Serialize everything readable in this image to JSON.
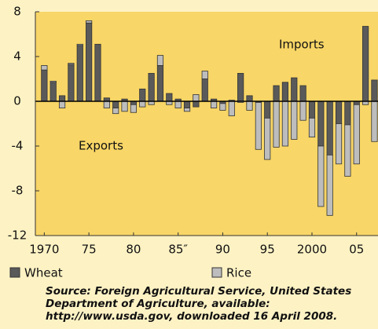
{
  "chart_data": {
    "type": "bar",
    "stacked": true,
    "x": [
      1970,
      1971,
      1972,
      1973,
      1974,
      1975,
      1976,
      1977,
      1978,
      1979,
      1980,
      1981,
      1982,
      1983,
      1984,
      1985,
      1986,
      1987,
      1988,
      1989,
      1990,
      1991,
      1992,
      1993,
      1994,
      1995,
      1996,
      1997,
      1998,
      1999,
      2000,
      2001,
      2002,
      2003,
      2004,
      2005,
      2006,
      2007
    ],
    "series": [
      {
        "name": "Wheat",
        "color": "#5a5a5a",
        "values": [
          2.8,
          1.7,
          0.5,
          3.3,
          5.0,
          7.0,
          5.1,
          0.3,
          -0.6,
          0.2,
          -0.3,
          1.1,
          2.5,
          3.2,
          0.7,
          0.2,
          -0.6,
          -0.5,
          2.0,
          0.2,
          -0.2,
          0.1,
          2.5,
          0.5,
          -0.1,
          -1.5,
          1.4,
          1.7,
          2.1,
          1.4,
          -1.5,
          -4.0,
          -4.8,
          -2.0,
          -2.1,
          -0.3,
          6.7,
          1.9
        ]
      },
      {
        "name": "Rice",
        "color": "#bdbdbd",
        "values": [
          0.4,
          0.1,
          -0.6,
          0.1,
          0.1,
          0.2,
          0.0,
          -0.6,
          -0.5,
          -0.9,
          -0.7,
          -0.5,
          -0.3,
          0.9,
          -0.3,
          -0.6,
          -0.3,
          0.6,
          0.7,
          -0.6,
          -0.6,
          -1.3,
          -0.1,
          -0.8,
          -4.2,
          -3.7,
          -4.1,
          -4.0,
          -3.4,
          -1.7,
          -1.7,
          -5.4,
          -5.4,
          -3.6,
          -4.6,
          -5.3,
          -0.3,
          -3.6
        ]
      }
    ],
    "xlim": [
      1969,
      2007.4
    ],
    "xticks": [
      {
        "value": 1970,
        "label": "1970"
      },
      {
        "value": 1975,
        "label": "75"
      },
      {
        "value": 1980,
        "label": "80"
      },
      {
        "value": 1985,
        "label": "85″"
      },
      {
        "value": 1990,
        "label": "90"
      },
      {
        "value": 1995,
        "label": "95"
      },
      {
        "value": 2000,
        "label": "2000"
      },
      {
        "value": 2005,
        "label": "05"
      }
    ],
    "ylim": [
      -12,
      8
    ],
    "yticks": [
      -12,
      -8,
      -4,
      0,
      4,
      8
    ],
    "annotations": [
      "Imports",
      "Exports"
    ],
    "source_lines": [
      "Source: Foreign Agricultural Service, United States",
      "Department of Agriculture, available:",
      "http://www.usda.gov, downloaded 16 April 2008."
    ]
  }
}
